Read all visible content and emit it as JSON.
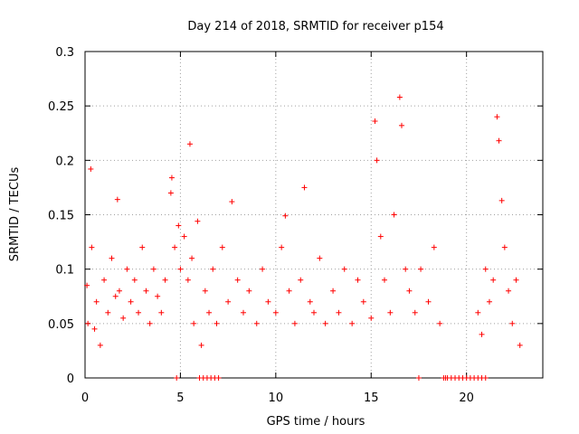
{
  "chart_data": {
    "type": "scatter",
    "title": "Day 214 of 2018, SRMTID for receiver p154",
    "xlabel": "GPS time / hours",
    "ylabel": "SRMTID / TECUs",
    "xlim": [
      0,
      24
    ],
    "ylim": [
      0,
      0.3
    ],
    "xticks": [
      0,
      5,
      10,
      15,
      20
    ],
    "yticks": [
      0,
      0.05,
      0.1,
      0.15,
      0.2,
      0.25,
      0.3
    ],
    "xtick_labels": [
      "0",
      "5",
      "10",
      "15",
      "20"
    ],
    "ytick_labels": [
      "0",
      "0.05",
      "0.1",
      "0.15",
      "0.2",
      "0.25",
      "0.3"
    ],
    "grid": true,
    "marker": "+",
    "color": "#ff0000",
    "series": [
      {
        "name": "SRMTID",
        "x": [
          0.1,
          0.15,
          0.3,
          0.35,
          0.5,
          0.6,
          0.8,
          1.0,
          1.2,
          1.4,
          1.6,
          1.7,
          1.8,
          2.0,
          2.2,
          2.4,
          2.6,
          2.8,
          3.0,
          3.2,
          3.4,
          3.6,
          3.8,
          4.0,
          4.2,
          4.5,
          4.55,
          4.7,
          4.9,
          5.0,
          5.2,
          5.4,
          5.5,
          5.6,
          5.7,
          5.9,
          6.1,
          6.3,
          6.5,
          6.7,
          6.9,
          7.2,
          7.5,
          7.7,
          8.0,
          8.3,
          8.6,
          9.0,
          9.3,
          9.6,
          10.0,
          10.3,
          10.5,
          10.7,
          11.0,
          11.3,
          11.5,
          11.8,
          12.0,
          12.3,
          12.6,
          13.0,
          13.3,
          13.6,
          14.0,
          14.3,
          14.6,
          15.0,
          15.2,
          15.3,
          15.5,
          15.7,
          16.0,
          16.2,
          16.5,
          16.6,
          16.8,
          17.0,
          17.3,
          17.6,
          18.0,
          18.3,
          18.6,
          20.6,
          20.8,
          21.0,
          21.2,
          21.4,
          21.6,
          21.7,
          21.85,
          22.0,
          22.2,
          22.4,
          22.6,
          22.8,
          6.0,
          6.2,
          6.4,
          6.6,
          6.8,
          7.0,
          17.5,
          18.8,
          18.9,
          19.0,
          19.2,
          19.4,
          19.6,
          19.8,
          20.0,
          20.2,
          20.4,
          20.6,
          20.8,
          21.0,
          4.8
        ],
        "y": [
          0.085,
          0.05,
          0.192,
          0.12,
          0.045,
          0.07,
          0.03,
          0.09,
          0.06,
          0.11,
          0.075,
          0.164,
          0.08,
          0.055,
          0.1,
          0.07,
          0.09,
          0.06,
          0.12,
          0.08,
          0.05,
          0.1,
          0.075,
          0.06,
          0.09,
          0.17,
          0.184,
          0.12,
          0.14,
          0.1,
          0.13,
          0.09,
          0.215,
          0.11,
          0.05,
          0.144,
          0.03,
          0.08,
          0.06,
          0.1,
          0.05,
          0.12,
          0.07,
          0.162,
          0.09,
          0.06,
          0.08,
          0.05,
          0.1,
          0.07,
          0.06,
          0.12,
          0.149,
          0.08,
          0.05,
          0.09,
          0.175,
          0.07,
          0.06,
          0.11,
          0.05,
          0.08,
          0.06,
          0.1,
          0.05,
          0.09,
          0.07,
          0.055,
          0.236,
          0.2,
          0.13,
          0.09,
          0.06,
          0.15,
          0.258,
          0.232,
          0.1,
          0.08,
          0.06,
          0.1,
          0.07,
          0.12,
          0.05,
          0.06,
          0.04,
          0.1,
          0.07,
          0.09,
          0.24,
          0.218,
          0.163,
          0.12,
          0.08,
          0.05,
          0.09,
          0.03,
          0,
          0,
          0,
          0,
          0,
          0,
          0,
          0,
          0,
          0,
          0,
          0,
          0,
          0,
          0,
          0,
          0,
          0,
          0,
          0,
          0
        ]
      }
    ]
  }
}
